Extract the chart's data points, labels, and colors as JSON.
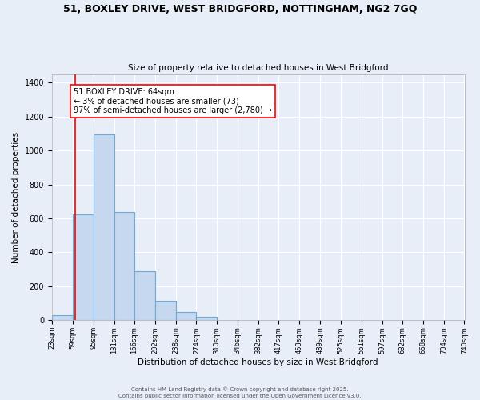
{
  "title1": "51, BOXLEY DRIVE, WEST BRIDGFORD, NOTTINGHAM, NG2 7GQ",
  "title2": "Size of property relative to detached houses in West Bridgford",
  "xlabel": "Distribution of detached houses by size in West Bridgford",
  "ylabel": "Number of detached properties",
  "bin_edges": [
    23,
    59,
    95,
    131,
    166,
    202,
    238,
    274,
    310,
    346,
    382,
    417,
    453,
    489,
    525,
    561,
    597,
    632,
    668,
    704,
    740
  ],
  "bin_labels": [
    "23sqm",
    "59sqm",
    "95sqm",
    "131sqm",
    "166sqm",
    "202sqm",
    "238sqm",
    "274sqm",
    "310sqm",
    "346sqm",
    "382sqm",
    "417sqm",
    "453sqm",
    "489sqm",
    "525sqm",
    "561sqm",
    "597sqm",
    "632sqm",
    "668sqm",
    "704sqm",
    "740sqm"
  ],
  "bar_heights": [
    30,
    625,
    1095,
    640,
    290,
    115,
    50,
    20,
    0,
    0,
    0,
    0,
    0,
    0,
    0,
    0,
    0,
    0,
    0,
    0
  ],
  "bar_color": "#c5d8f0",
  "bar_edge_color": "#6aaad4",
  "property_line_x": 64,
  "property_line_color": "red",
  "annotation_title": "51 BOXLEY DRIVE: 64sqm",
  "annotation_line1": "← 3% of detached houses are smaller (73)",
  "annotation_line2": "97% of semi-detached houses are larger (2,780) →",
  "annotation_box_color": "white",
  "annotation_box_edge_color": "red",
  "ylim": [
    0,
    1450
  ],
  "yticks": [
    0,
    200,
    400,
    600,
    800,
    1000,
    1200,
    1400
  ],
  "bg_color": "#e8eef8",
  "grid_color": "#ffffff",
  "footer1": "Contains HM Land Registry data © Crown copyright and database right 2025.",
  "footer2": "Contains public sector information licensed under the Open Government Licence v3.0."
}
